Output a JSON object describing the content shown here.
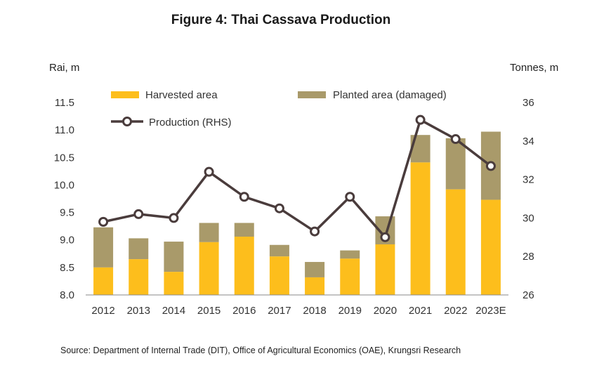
{
  "chart_data": {
    "type": "bar",
    "title": "Figure 4: Thai Cassava Production",
    "categories": [
      "2012",
      "2013",
      "2014",
      "2015",
      "2016",
      "2017",
      "2018",
      "2019",
      "2020",
      "2021",
      "2022",
      "2023E"
    ],
    "series": [
      {
        "name": "Harvested area",
        "kind": "bar-stack",
        "axis": "left",
        "color": "#FDBE1C",
        "values": [
          8.5,
          8.65,
          8.42,
          8.96,
          9.06,
          8.7,
          8.32,
          8.66,
          8.92,
          10.41,
          9.92,
          9.73
        ]
      },
      {
        "name": "Planted area (damaged)",
        "kind": "bar-stack-total",
        "axis": "left",
        "color": "#A99A6A",
        "values": [
          9.23,
          9.03,
          8.97,
          9.31,
          9.31,
          8.91,
          8.6,
          8.81,
          9.43,
          10.91,
          10.85,
          10.97
        ]
      },
      {
        "name": "Production (RHS)",
        "kind": "line",
        "axis": "right",
        "color": "#4A3C3C",
        "values": [
          29.8,
          30.2,
          30.0,
          32.4,
          31.1,
          30.5,
          29.3,
          31.1,
          29.0,
          35.1,
          34.1,
          32.7
        ]
      }
    ],
    "ylabel": "Rai, m",
    "ylim": [
      8.0,
      11.5
    ],
    "yticks": [
      "8.0",
      "8.5",
      "9.0",
      "9.5",
      "10.0",
      "10.5",
      "11.0",
      "11.5"
    ],
    "y2label": "Tonnes, m",
    "y2lim": [
      26,
      36
    ],
    "y2ticks": [
      "26",
      "28",
      "30",
      "32",
      "34",
      "36"
    ],
    "legend": {
      "harvested": "Harvested area",
      "planted": "Planted area (damaged)",
      "production": "Production (RHS)"
    },
    "grid": false
  },
  "source": "Source: Department of Internal Trade (DIT), Office of Agricultural Economics (OAE), Krungsri Research"
}
